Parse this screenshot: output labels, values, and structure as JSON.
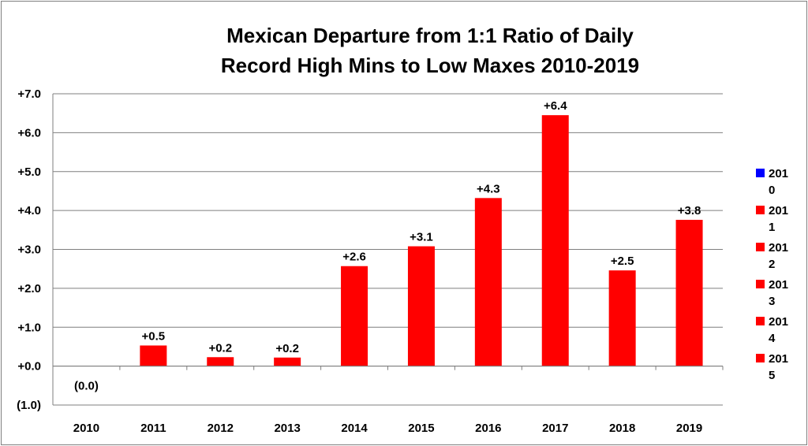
{
  "chart_data": {
    "type": "bar",
    "title_lines": [
      "Mexican Departure from 1:1 Ratio of Daily",
      "Record High Mins to Low Maxes 2010-2019"
    ],
    "categories": [
      "2010",
      "2011",
      "2012",
      "2013",
      "2014",
      "2015",
      "2016",
      "2017",
      "2018",
      "2019"
    ],
    "values": [
      0.0,
      0.53,
      0.23,
      0.22,
      2.57,
      3.08,
      4.32,
      6.45,
      2.46,
      3.76
    ],
    "data_labels": [
      "(0.0)",
      "+0.5",
      "+0.2",
      "+0.2",
      "+2.6",
      "+3.1",
      "+4.3",
      "+6.4",
      "+2.5",
      "+3.8"
    ],
    "bar_colors": [
      "#0000ff",
      "#ff0000",
      "#ff0000",
      "#ff0000",
      "#ff0000",
      "#ff0000",
      "#ff0000",
      "#ff0000",
      "#ff0000",
      "#ff0000"
    ],
    "label_colors": [
      "#0000cc",
      "#000000",
      "#000000",
      "#000000",
      "#000000",
      "#000000",
      "#000000",
      "#000000",
      "#000000",
      "#000000"
    ],
    "ylim": [
      -1.0,
      7.0
    ],
    "y_ticks": [
      7,
      6,
      5,
      4,
      3,
      2,
      1,
      0,
      -1
    ],
    "y_tick_labels": [
      "+7.0",
      "+6.0",
      "+5.0",
      "+4.0",
      "+3.0",
      "+2.0",
      "+1.0",
      "+0.0",
      "(1.0)"
    ],
    "y_tick_label_colors": [
      "#000000",
      "#000000",
      "#000000",
      "#000000",
      "#000000",
      "#000000",
      "#000000",
      "#000000",
      "#0000cc"
    ],
    "grid": true,
    "legend": {
      "position": "right",
      "entries": [
        {
          "lines": [
            "201",
            "0"
          ],
          "color": "#0000ff"
        },
        {
          "lines": [
            "201",
            "1"
          ],
          "color": "#ff0000"
        },
        {
          "lines": [
            "201",
            "2"
          ],
          "color": "#ff0000"
        },
        {
          "lines": [
            "201",
            "3"
          ],
          "color": "#ff0000"
        },
        {
          "lines": [
            "201",
            "4"
          ],
          "color": "#ff0000"
        },
        {
          "lines": [
            "201",
            "5"
          ],
          "color": "#ff0000"
        }
      ]
    }
  }
}
